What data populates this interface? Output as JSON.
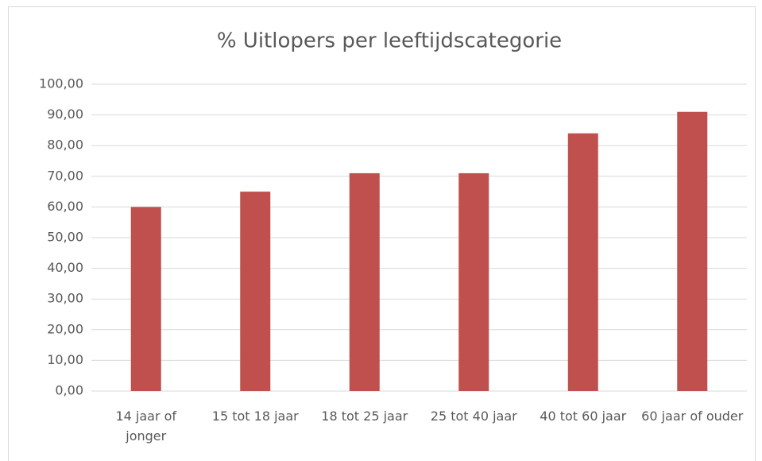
{
  "chart_data": {
    "type": "bar",
    "title": "% Uitlopers per leeftijdscategorie",
    "categories": [
      "14 jaar of jonger",
      "15 tot 18 jaar",
      "18 tot 25 jaar",
      "25 tot 40 jaar",
      "40 tot 60 jaar",
      "60 jaar of ouder"
    ],
    "values": [
      60,
      65,
      71,
      71,
      84,
      91
    ],
    "color": "#c0504d",
    "ylim": [
      0,
      100
    ],
    "yticks": [
      {
        "value": 0,
        "label": "0,00"
      },
      {
        "value": 10,
        "label": "10,00"
      },
      {
        "value": 20,
        "label": "20,00"
      },
      {
        "value": 30,
        "label": "30,00"
      },
      {
        "value": 40,
        "label": "40,00"
      },
      {
        "value": 50,
        "label": "50,00"
      },
      {
        "value": 60,
        "label": "60,00"
      },
      {
        "value": 70,
        "label": "70,00"
      },
      {
        "value": 80,
        "label": "80,00"
      },
      {
        "value": 90,
        "label": "90,00"
      },
      {
        "value": 100,
        "label": "100,00"
      }
    ],
    "grid": true
  }
}
